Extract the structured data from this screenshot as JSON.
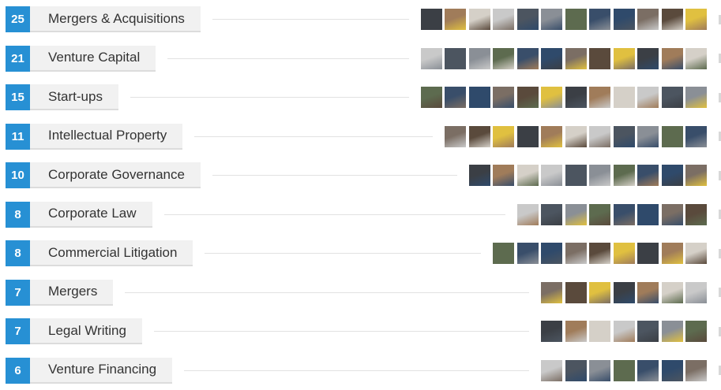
{
  "skills": [
    {
      "count": 25,
      "name": "Mergers & Acquisitions"
    },
    {
      "count": 21,
      "name": "Venture Capital"
    },
    {
      "count": 15,
      "name": "Start-ups"
    },
    {
      "count": 11,
      "name": "Intellectual Property"
    },
    {
      "count": 10,
      "name": "Corporate Governance"
    },
    {
      "count": 8,
      "name": "Corporate Law"
    },
    {
      "count": 8,
      "name": "Commercial Litigation"
    },
    {
      "count": 7,
      "name": "Mergers"
    },
    {
      "count": 7,
      "name": "Legal Writing"
    },
    {
      "count": 6,
      "name": "Venture Financing"
    }
  ]
}
